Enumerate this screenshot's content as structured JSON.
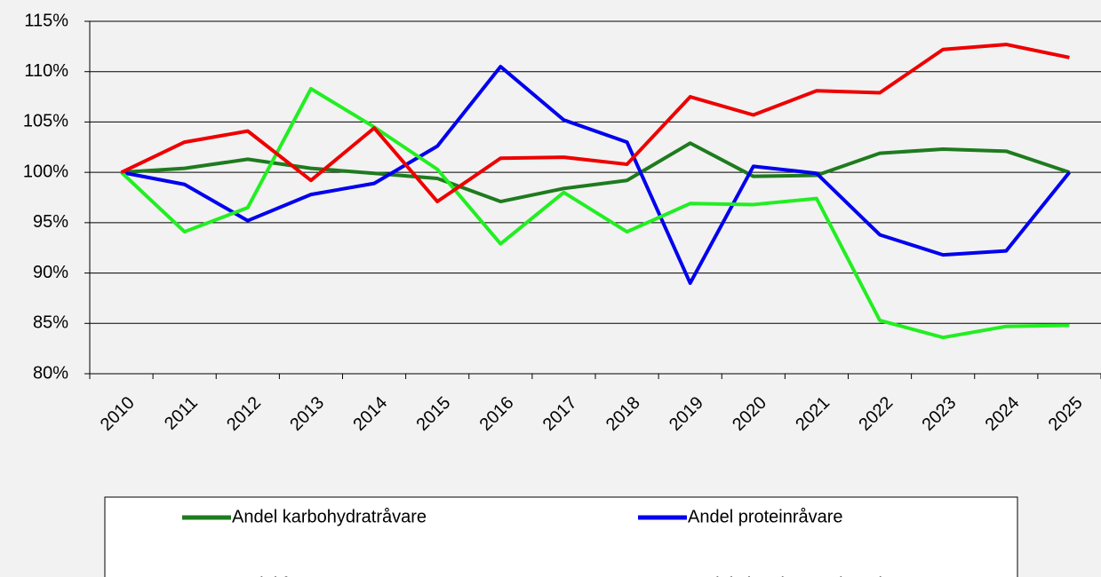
{
  "chart_data": {
    "type": "line",
    "categories": [
      "2010",
      "2011",
      "2012",
      "2013",
      "2014",
      "2015",
      "2016",
      "2017",
      "2018",
      "2019",
      "2020",
      "2021",
      "2022",
      "2023",
      "2024",
      "2025"
    ],
    "series": [
      {
        "name": "Andel karbohydratråvare",
        "color": "#1e7b1e",
        "values": [
          100,
          100.4,
          101.3,
          100.4,
          99.9,
          99.4,
          97.1,
          98.4,
          99.2,
          102.9,
          99.6,
          99.7,
          101.9,
          102.3,
          102.1,
          100
        ]
      },
      {
        "name": "Andel proteinråvare",
        "color": "#0000ee",
        "values": [
          100,
          98.8,
          95.2,
          97.8,
          98.9,
          102.6,
          110.5,
          105.2,
          103.0,
          89.0,
          100.6,
          99.9,
          93.8,
          91.8,
          92.2,
          100
        ]
      },
      {
        "name": "Andel fett",
        "color": "#22ee22",
        "values": [
          100,
          94.1,
          96.5,
          108.3,
          104.5,
          100.3,
          92.9,
          98.0,
          94.1,
          96.9,
          96.8,
          97.4,
          85.3,
          83.6,
          84.7,
          84.8
        ]
      },
      {
        "name": "Andel vitamin og mineral",
        "color": "#ee0000",
        "values": [
          100,
          103.0,
          104.1,
          99.2,
          104.4,
          97.1,
          101.4,
          101.5,
          100.8,
          107.5,
          105.7,
          108.1,
          107.9,
          112.2,
          112.7,
          111.4
        ]
      }
    ],
    "ylim": [
      80,
      115
    ],
    "yticks": [
      {
        "value": 80,
        "label": "80%"
      },
      {
        "value": 85,
        "label": "85%"
      },
      {
        "value": 90,
        "label": "90%"
      },
      {
        "value": 95,
        "label": "95%"
      },
      {
        "value": 100,
        "label": "100%"
      },
      {
        "value": 105,
        "label": "105%"
      },
      {
        "value": 110,
        "label": "110%"
      },
      {
        "value": 115,
        "label": "115%"
      }
    ],
    "grid": true,
    "legend": "bottom"
  }
}
